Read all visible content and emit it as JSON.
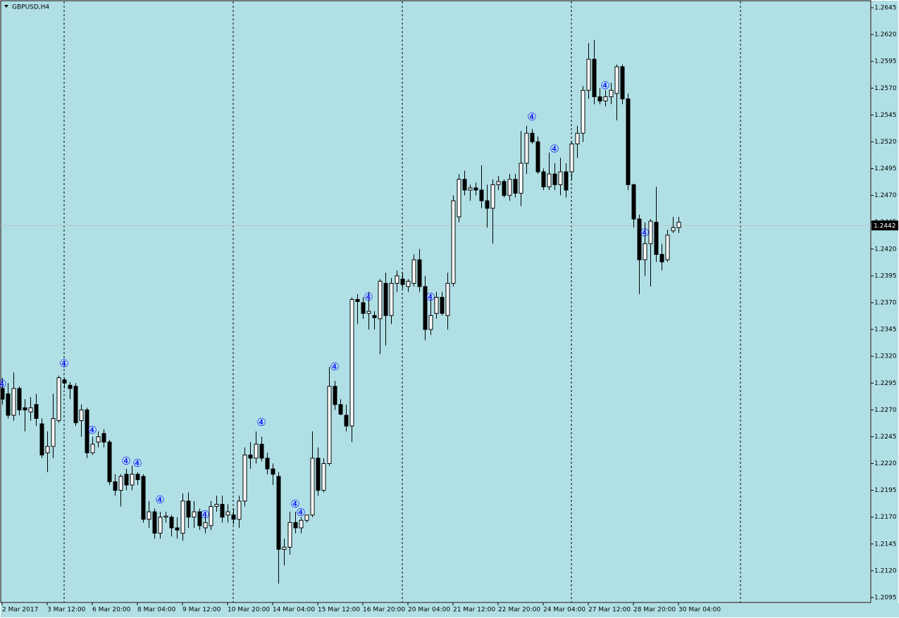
{
  "chart_data": {
    "type": "candlestick",
    "title": "GBPUSD,H4",
    "background": "#b0e0e6",
    "bull_color": "#ffffff",
    "bear_color": "#000000",
    "outline_color": "#000000",
    "signal_color": "#0000ff",
    "last_price_line_color": "#c0c0c0",
    "ylim": [
      1.20904,
      1.26509
    ],
    "yticks": [
      1.2645,
      {
        "value": 1.262,
        "label": "1.2620"
      },
      1.2595,
      {
        "value": 1.257,
        "label": "1.2570"
      },
      1.2545,
      {
        "value": 1.252,
        "label": "1.2520"
      },
      1.2495,
      {
        "value": 1.247,
        "label": "1.2470"
      },
      1.2445,
      {
        "value": 1.242,
        "label": "1.2420"
      },
      1.2395,
      {
        "value": 1.237,
        "label": "1.2370"
      },
      1.2345,
      {
        "value": 1.232,
        "label": "1.2320"
      },
      1.2295,
      {
        "value": 1.227,
        "label": "1.2270"
      },
      1.2245,
      {
        "value": 1.222,
        "label": "1.2220"
      },
      1.2195,
      {
        "value": 1.217,
        "label": "1.2170"
      },
      1.2145,
      {
        "value": 1.212,
        "label": "1.2120"
      },
      1.2095
    ],
    "last_price": 1.2442,
    "categories": [
      "2 Mar 2017",
      null,
      null,
      null,
      null,
      null,
      null,
      null,
      "3 Mar 12:00",
      null,
      null,
      null,
      null,
      null,
      null,
      null,
      "6 Mar 20:00",
      null,
      null,
      null,
      null,
      null,
      null,
      null,
      "8 Mar 04:00",
      null,
      null,
      null,
      null,
      null,
      null,
      null,
      "9 Mar 12:00",
      null,
      null,
      null,
      null,
      null,
      null,
      null,
      "10 Mar 20:00",
      null,
      null,
      null,
      null,
      null,
      null,
      null,
      "14 Mar 04:00",
      null,
      null,
      null,
      null,
      null,
      null,
      null,
      "15 Mar 12:00",
      null,
      null,
      null,
      null,
      null,
      null,
      null,
      "16 Mar 20:00",
      null,
      null,
      null,
      null,
      null,
      null,
      null,
      "20 Mar 04:00",
      null,
      null,
      null,
      null,
      null,
      null,
      null,
      "21 Mar 12:00",
      null,
      null,
      null,
      null,
      null,
      null,
      null,
      "22 Mar 20:00",
      null,
      null,
      null,
      null,
      null,
      null,
      null,
      "24 Mar 04:00",
      null,
      null,
      null,
      null,
      null,
      null,
      null,
      "27 Mar 12:00",
      null,
      null,
      null,
      null,
      null,
      null,
      null,
      "28 Mar 20:00",
      null,
      null,
      null,
      null,
      null,
      null,
      null,
      "30 Mar 04:00"
    ],
    "candles": [
      [
        1.229,
        1.23,
        1.2275,
        1.228
      ],
      [
        1.2285,
        1.2295,
        1.2262,
        1.2265
      ],
      [
        1.2265,
        1.2305,
        1.226,
        1.229
      ],
      [
        1.229,
        1.2292,
        1.2265,
        1.227
      ],
      [
        1.2272,
        1.228,
        1.225,
        1.227
      ],
      [
        1.2268,
        1.2282,
        1.226,
        1.2272
      ],
      [
        1.2275,
        1.2285,
        1.2255,
        1.2262
      ],
      [
        1.2257,
        1.2262,
        1.2225,
        1.2228
      ],
      [
        1.223,
        1.225,
        1.2212,
        1.2236
      ],
      [
        1.2236,
        1.2285,
        1.2225,
        1.2262
      ],
      [
        1.226,
        1.2302,
        1.2258,
        1.23
      ],
      [
        1.2298,
        1.23,
        1.229,
        1.2295
      ],
      [
        1.2293,
        1.2296,
        1.228,
        1.229
      ],
      [
        1.2292,
        1.2295,
        1.2255,
        1.2258
      ],
      [
        1.226,
        1.2275,
        1.2245,
        1.227
      ],
      [
        1.227,
        1.2272,
        1.2225,
        1.223
      ],
      [
        1.223,
        1.2245,
        1.2228,
        1.2238
      ],
      [
        1.224,
        1.225,
        1.2235,
        1.2245
      ],
      [
        1.2248,
        1.2252,
        1.2235,
        1.224
      ],
      [
        1.224,
        1.2242,
        1.22,
        1.2203
      ],
      [
        1.2203,
        1.221,
        1.219,
        1.2195
      ],
      [
        1.2195,
        1.221,
        1.218,
        1.2208
      ],
      [
        1.221,
        1.2215,
        1.2195,
        1.22
      ],
      [
        1.22,
        1.2218,
        1.2195,
        1.221
      ],
      [
        1.221,
        1.2212,
        1.22,
        1.2205
      ],
      [
        1.2208,
        1.221,
        1.2165,
        1.2168
      ],
      [
        1.2168,
        1.2185,
        1.216,
        1.2175
      ],
      [
        1.2175,
        1.2178,
        1.215,
        1.2155
      ],
      [
        1.2155,
        1.2175,
        1.215,
        1.217
      ],
      [
        1.217,
        1.2175,
        1.2165,
        1.2171
      ],
      [
        1.217,
        1.2172,
        1.2152,
        1.216
      ],
      [
        1.216,
        1.217,
        1.215,
        1.2158
      ],
      [
        1.2155,
        1.2192,
        1.2148,
        1.2185
      ],
      [
        1.2185,
        1.2193,
        1.216,
        1.217
      ],
      [
        1.217,
        1.2185,
        1.216,
        1.2175
      ],
      [
        1.2175,
        1.2178,
        1.2158,
        1.2162
      ],
      [
        1.216,
        1.2172,
        1.2155,
        1.2165
      ],
      [
        1.2162,
        1.2185,
        1.2158,
        1.218
      ],
      [
        1.218,
        1.219,
        1.2175,
        1.2182
      ],
      [
        1.2182,
        1.219,
        1.2165,
        1.217
      ],
      [
        1.2172,
        1.2182,
        1.2165,
        1.2175
      ],
      [
        1.2172,
        1.2178,
        1.2163,
        1.2168
      ],
      [
        1.2168,
        1.219,
        1.216,
        1.2185
      ],
      [
        1.2185,
        1.2235,
        1.218,
        1.2228
      ],
      [
        1.2228,
        1.224,
        1.2215,
        1.2225
      ],
      [
        1.2225,
        1.225,
        1.222,
        1.2238
      ],
      [
        1.2238,
        1.2245,
        1.2222,
        1.2225
      ],
      [
        1.2225,
        1.223,
        1.221,
        1.2215
      ],
      [
        1.2215,
        1.222,
        1.22,
        1.221
      ],
      [
        1.2208,
        1.2212,
        1.2108,
        1.214
      ],
      [
        1.214,
        1.215,
        1.2125,
        1.2142
      ],
      [
        1.2142,
        1.2175,
        1.2135,
        1.2165
      ],
      [
        1.2165,
        1.2175,
        1.2155,
        1.216
      ],
      [
        1.216,
        1.217,
        1.2155,
        1.2167
      ],
      [
        1.2167,
        1.2172,
        1.2165,
        1.2172
      ],
      [
        1.2172,
        1.225,
        1.217,
        1.2225
      ],
      [
        1.2225,
        1.2235,
        1.219,
        1.2195
      ],
      [
        1.2195,
        1.2225,
        1.2193,
        1.222
      ],
      [
        1.222,
        1.231,
        1.2218,
        1.2292
      ],
      [
        1.2292,
        1.2297,
        1.227,
        1.2275
      ],
      [
        1.2275,
        1.228,
        1.2265,
        1.2266
      ],
      [
        1.2265,
        1.2275,
        1.225,
        1.2255
      ],
      [
        1.2255,
        1.2375,
        1.224,
        1.2373
      ],
      [
        1.2373,
        1.2378,
        1.235,
        1.2371
      ],
      [
        1.237,
        1.2375,
        1.2355,
        1.236
      ],
      [
        1.236,
        1.238,
        1.2345,
        1.2362
      ],
      [
        1.2358,
        1.2362,
        1.2345,
        1.2356
      ],
      [
        1.2355,
        1.2392,
        1.2322,
        1.239
      ],
      [
        1.2388,
        1.2398,
        1.233,
        1.2358
      ],
      [
        1.2358,
        1.2393,
        1.235,
        1.2388
      ],
      [
        1.2388,
        1.24,
        1.238,
        1.2395
      ],
      [
        1.2392,
        1.2398,
        1.2383,
        1.2387
      ],
      [
        1.2385,
        1.2392,
        1.238,
        1.239
      ],
      [
        1.2388,
        1.2415,
        1.2385,
        1.241
      ],
      [
        1.241,
        1.242,
        1.238,
        1.2385
      ],
      [
        1.2385,
        1.2395,
        1.2335,
        1.2345
      ],
      [
        1.2345,
        1.2378,
        1.234,
        1.2358
      ],
      [
        1.236,
        1.238,
        1.2355,
        1.2375
      ],
      [
        1.2375,
        1.238,
        1.2358,
        1.236
      ],
      [
        1.2358,
        1.2398,
        1.2345,
        1.2388
      ],
      [
        1.2388,
        1.247,
        1.2385,
        1.2465
      ],
      [
        1.245,
        1.249,
        1.2445,
        1.2485
      ],
      [
        1.2485,
        1.2493,
        1.247,
        1.2475
      ],
      [
        1.2475,
        1.248,
        1.2465,
        1.2477
      ],
      [
        1.2477,
        1.2482,
        1.247,
        1.2475
      ],
      [
        1.2475,
        1.2498,
        1.2458,
        1.2465
      ],
      [
        1.2465,
        1.248,
        1.244,
        1.2458
      ],
      [
        1.2458,
        1.2485,
        1.2425,
        1.248
      ],
      [
        1.248,
        1.2488,
        1.2475,
        1.2483
      ],
      [
        1.2483,
        1.2485,
        1.2468,
        1.247
      ],
      [
        1.247,
        1.249,
        1.2465,
        1.2485
      ],
      [
        1.2485,
        1.249,
        1.2468,
        1.2472
      ],
      [
        1.2472,
        1.253,
        1.246,
        1.25
      ],
      [
        1.25,
        1.2535,
        1.249,
        1.2528
      ],
      [
        1.2528,
        1.2532,
        1.2518,
        1.252
      ],
      [
        1.252,
        1.2525,
        1.249,
        1.2492
      ],
      [
        1.2492,
        1.2495,
        1.2475,
        1.2478
      ],
      [
        1.2478,
        1.251,
        1.2475,
        1.249
      ],
      [
        1.249,
        1.25,
        1.2475,
        1.248
      ],
      [
        1.248,
        1.2505,
        1.247,
        1.2492
      ],
      [
        1.2492,
        1.25,
        1.2468,
        1.2475
      ],
      [
        1.2492,
        1.252,
        1.2485,
        1.2518
      ],
      [
        1.2518,
        1.2535,
        1.2505,
        1.2528
      ],
      [
        1.2528,
        1.2572,
        1.252,
        1.2568
      ],
      [
        1.2568,
        1.2612,
        1.256,
        1.2597
      ],
      [
        1.2597,
        1.2615,
        1.2555,
        1.2562
      ],
      [
        1.2562,
        1.257,
        1.2555,
        1.2558
      ],
      [
        1.2558,
        1.2568,
        1.2553,
        1.2562
      ],
      [
        1.2562,
        1.2575,
        1.2555,
        1.2568
      ],
      [
        1.2565,
        1.2592,
        1.254,
        1.259
      ],
      [
        1.259,
        1.2592,
        1.2555,
        1.256
      ],
      [
        1.256,
        1.2565,
        1.2475,
        1.248
      ],
      [
        1.248,
        1.2481,
        1.244,
        1.2448
      ],
      [
        1.2448,
        1.2452,
        1.2378,
        1.241
      ],
      [
        1.241,
        1.2445,
        1.2395,
        1.2425
      ],
      [
        1.2425,
        1.2448,
        1.2385,
        1.2446
      ],
      [
        1.2445,
        1.2478,
        1.2408,
        1.2415
      ],
      [
        1.2415,
        1.2425,
        1.24,
        1.2408
      ],
      [
        1.241,
        1.2438,
        1.2408,
        1.2433
      ],
      [
        1.2437,
        1.245,
        1.2435,
        1.244
      ],
      [
        1.244,
        1.245,
        1.2435,
        1.2445
      ]
    ],
    "signal_label": "④",
    "signals": [
      1.2294,
      null,
      null,
      null,
      null,
      null,
      null,
      null,
      null,
      null,
      null,
      1.2313,
      null,
      null,
      null,
      null,
      1.2251,
      null,
      null,
      null,
      null,
      null,
      1.2222,
      null,
      1.222,
      null,
      null,
      null,
      1.2186,
      null,
      null,
      null,
      null,
      null,
      null,
      null,
      1.2172,
      null,
      null,
      null,
      null,
      null,
      null,
      null,
      null,
      null,
      1.2258,
      null,
      null,
      null,
      null,
      null,
      1.2182,
      1.2174,
      null,
      null,
      null,
      null,
      null,
      1.231,
      null,
      null,
      null,
      null,
      null,
      1.2375,
      null,
      null,
      null,
      null,
      null,
      null,
      null,
      null,
      null,
      null,
      1.2375,
      null,
      null,
      null,
      null,
      null,
      null,
      null,
      null,
      null,
      null,
      null,
      null,
      null,
      null,
      null,
      null,
      null,
      1.2543,
      null,
      null,
      null,
      1.2513,
      null,
      null,
      null,
      null,
      null,
      null,
      null,
      null,
      1.2572,
      null,
      null,
      null,
      null,
      null,
      null,
      1.2435,
      null,
      null,
      null,
      null,
      null,
      null
    ]
  }
}
